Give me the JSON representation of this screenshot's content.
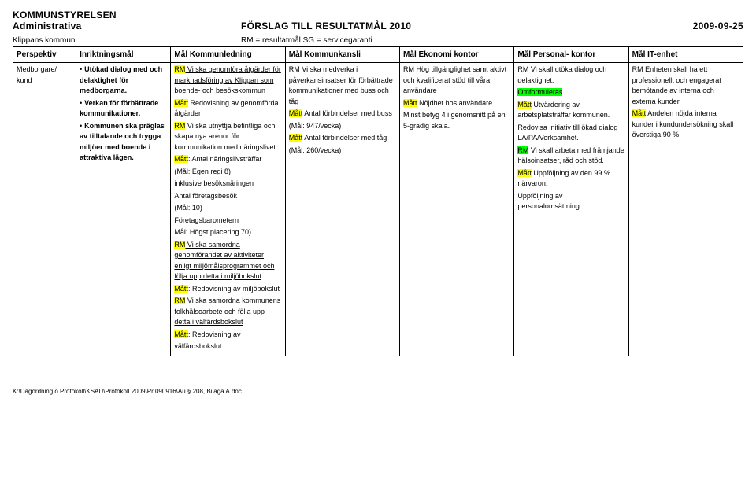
{
  "header": {
    "line1": "KOMMUNSTYRELSEN",
    "line2_left": "Administrativa",
    "line2_center": "FÖRSLAG TILL RESULTATMÅL 2010",
    "line2_right": "2009-09-25"
  },
  "legend": {
    "left": "Klippans kommun",
    "center": "RM = resultatmål  SG = servicegaranti"
  },
  "columns": [
    "Perspektiv",
    "Inriktningsmål",
    "Mål Kommunledning",
    "Mål Kommunkansli",
    "Mål Ekonomi kontor",
    "Mål Personal- kontor",
    "Mål IT-enhet"
  ],
  "row": {
    "perspektiv": "Medborgare/ kund",
    "inriktningsmal": [
      {
        "bullet": true,
        "bold": true,
        "text": "Utökad dialog med och delaktighet för medborgarna."
      },
      {
        "bullet": true,
        "bold": true,
        "text": "Verkan för förbättrade kommunikationer."
      },
      {
        "bullet": true,
        "bold": true,
        "text": "Kommunen ska präglas av tilltalande och trygga miljöer med boende i attraktiva lägen."
      }
    ],
    "kommunledning": [
      {
        "prefix_hl": "yellow",
        "prefix": "RM",
        "rest_u": true,
        "rest": " Vi ska genomföra åtgärder för marknadsföring av Klippan som boende- och besökskommun"
      },
      {
        "prefix_hl": "yellow",
        "prefix": "Mått",
        "rest": " Redovisning av genomförda åtgärder"
      },
      {
        "prefix_hl": "yellow",
        "prefix": "RM",
        "rest": " Vi ska utnyttja befintliga och skapa nya arenor för kommunikation med näringslivet"
      },
      {
        "prefix_hl": "yellow",
        "prefix": "Mått",
        "rest": ": Antal näringslivsträffar"
      },
      {
        "plain": "(Mål: Egen regi 8)"
      },
      {
        "plain": "inklusive besöksnäringen"
      },
      {
        "plain": "Antal företagsbesök"
      },
      {
        "plain": "(Mål: 10)"
      },
      {
        "plain": "Företagsbarometern"
      },
      {
        "plain": "Mål: Högst placering 70)"
      },
      {
        "prefix_hl": "yellow",
        "prefix": "RM",
        "rest_u": true,
        "rest": " Vi ska samordna genomförandet av aktiviteter enligt miljömålsprogrammet och följa upp detta i miljöbokslut"
      },
      {
        "prefix_hl": "yellow",
        "prefix": "Mått",
        "rest": ": Redovisning av miljöbokslut"
      },
      {
        "prefix_hl": "yellow",
        "prefix": "RM",
        "rest_u": true,
        "rest": " Vi ska samordna kommunens folkhälsoarbete och följa upp detta i välfärdsbokslut"
      },
      {
        "prefix_hl": "yellow",
        "prefix": "Mått",
        "rest": ": Redovisning av"
      },
      {
        "plain": "välfärdsbokslut"
      }
    ],
    "kommunkansli": [
      {
        "prefix": "RM",
        "rest": " Vi ska medverka i påverkansinsatser för förbättrade kommunikationer med buss och tåg"
      },
      {
        "prefix_hl": "yellow",
        "prefix": "Mått",
        "rest": " Antal förbindelser med buss"
      },
      {
        "plain": "(Mål: 947/vecka)"
      },
      {
        "prefix_hl": "yellow",
        "prefix": "Mått",
        "rest": " Antal förbindelser med tåg"
      },
      {
        "plain": "(Mål: 260/vecka)"
      }
    ],
    "ekonomikontor": [
      {
        "prefix": "RM",
        "rest": " Hög tillgänglighet samt aktivt och kvalificerat stöd till våra användare"
      },
      {
        "prefix_hl": "yellow",
        "prefix": "Mått",
        "rest": " Nöjdhet hos användare."
      },
      {
        "plain": "Minst betyg 4 i genomsnitt på en 5-gradig skala."
      }
    ],
    "personalkontor": [
      {
        "prefix": "RM",
        "rest": " Vi skall utöka dialog och delaktighet."
      },
      {
        "green": true,
        "text": "Omformuleras"
      },
      {
        "prefix_hl": "yellow",
        "prefix": "Mått",
        "rest": " Utvärdering av arbetsplatsträffar kommunen."
      },
      {
        "plain": "Redovisa initiativ till ökad dialog LA/PA/Verksamhet."
      },
      {
        "prefix_hl": "green",
        "prefix": "RM",
        "rest": " Vi skall arbeta med främjande hälsoinsatser, råd och stöd."
      },
      {
        "prefix_hl": "yellow",
        "prefix": "Mått",
        "rest": " Uppföljning av den 99 % närvaron."
      },
      {
        "plain": "Uppföljning av personalomsättning."
      }
    ],
    "itenhet": [
      {
        "prefix": "RM",
        "rest": " Enheten skall ha ett professionellt och engagerat bemötande av interna och externa kunder."
      },
      {
        "prefix_hl": "yellow",
        "prefix": "Mått",
        "rest": " Andelen nöjda interna kunder i kundundersökning skall överstiga 90 %."
      }
    ]
  },
  "footer": "K:\\Dagordning o Protokoll\\KSAU\\Protokoll 2009\\Pr 090916\\Au § 208, Bilaga A.doc"
}
